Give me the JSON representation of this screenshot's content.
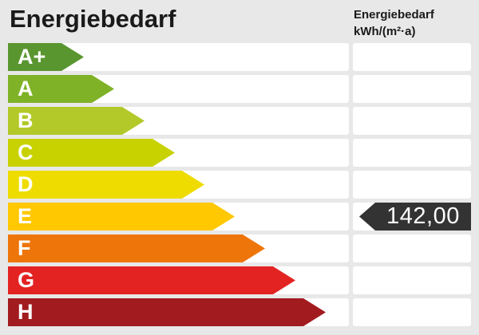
{
  "title": "Energiebedarf",
  "unit_header": {
    "line1": "Energiebedarf",
    "line2": "kWh/(m²·a)"
  },
  "indicator": {
    "display_value": "142,00",
    "category": "E",
    "bg_color": "#333333",
    "text_color": "#ffffff"
  },
  "scale": {
    "rows": [
      {
        "label": "A+",
        "color": "#5a9630",
        "arrow_width": 95
      },
      {
        "label": "A",
        "color": "#7fb227",
        "arrow_width": 133
      },
      {
        "label": "B",
        "color": "#b2c929",
        "arrow_width": 171
      },
      {
        "label": "C",
        "color": "#c8d200",
        "arrow_width": 209
      },
      {
        "label": "D",
        "color": "#eedc00",
        "arrow_width": 246
      },
      {
        "label": "E",
        "color": "#ffc800",
        "arrow_width": 284
      },
      {
        "label": "F",
        "color": "#ee7509",
        "arrow_width": 322
      },
      {
        "label": "G",
        "color": "#e32222",
        "arrow_width": 360
      },
      {
        "label": "H",
        "color": "#a11b1f",
        "arrow_width": 398
      }
    ]
  },
  "colors": {
    "background": "#e8e8e8",
    "row_background": "#ffffff",
    "title_text": "#1a1a1a"
  },
  "chart_data": {
    "type": "bar",
    "title": "Energiebedarf",
    "ylabel": "",
    "xlabel": "",
    "unit": "kWh/(m²·a)",
    "categories": [
      "A+",
      "A",
      "B",
      "C",
      "D",
      "E",
      "F",
      "G",
      "H"
    ],
    "values": [
      95,
      133,
      171,
      209,
      246,
      284,
      322,
      360,
      398
    ],
    "bar_colors": [
      "#5a9630",
      "#7fb227",
      "#b2c929",
      "#c8d200",
      "#eedc00",
      "#ffc800",
      "#ee7509",
      "#e32222",
      "#a11b1f"
    ],
    "orientation": "horizontal",
    "legend": "none",
    "grid": false,
    "indicator": {
      "value": 142.0,
      "display": "142,00",
      "category": "E"
    }
  }
}
